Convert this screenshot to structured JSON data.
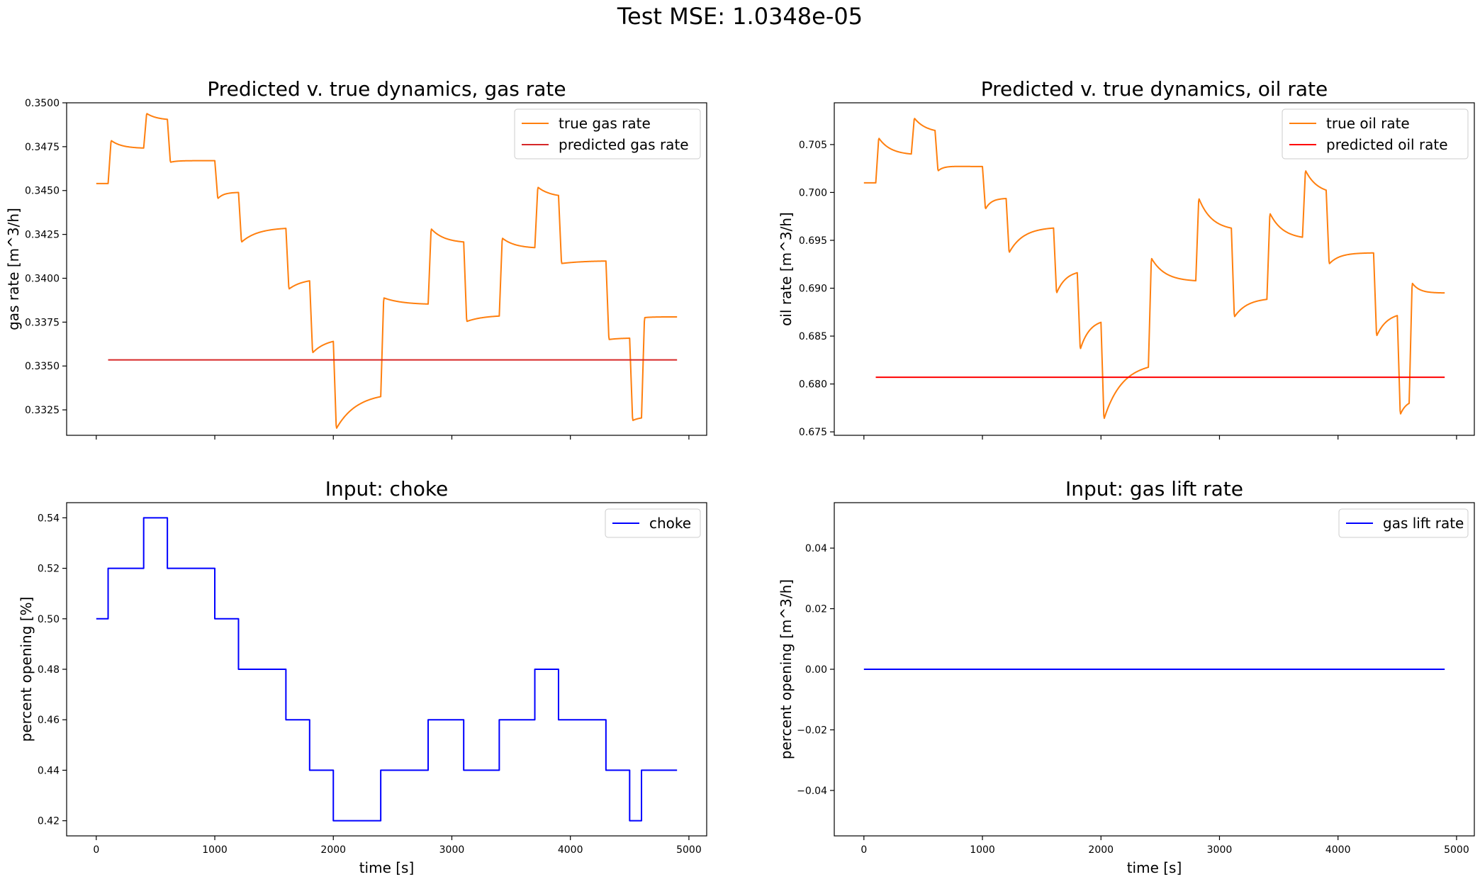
{
  "suptitle": "Test MSE: 1.0348e-05",
  "chart_data": [
    {
      "type": "line",
      "title": "Predicted v. true dynamics, gas rate",
      "xlabel": "",
      "ylabel": "gas rate [m^3/h]",
      "xlim": [
        -250,
        5150
      ],
      "ylim": [
        0.33105,
        0.35
      ],
      "x_ticks": [
        0,
        1000,
        2000,
        3000,
        4000,
        5000
      ],
      "x_tick_labels_visible": false,
      "y_ticks": [
        0.3325,
        0.335,
        0.3375,
        0.34,
        0.3425,
        0.345,
        0.3475,
        0.35
      ],
      "y_tick_labels": [
        "0.3325",
        "0.3350",
        "0.3375",
        "0.3400",
        "0.3425",
        "0.3450",
        "0.3475",
        "0.3500"
      ],
      "grid": false,
      "legend": "top-right",
      "series": [
        {
          "name": "true gas rate",
          "color": "#ff7f0e",
          "model": {
            "x_start": 0,
            "x_end": 4900,
            "initial": 0.3454,
            "events": [
              {
                "x": 100,
                "jump": 0.0026,
                "settle": -0.0006,
                "tau": 90
              },
              {
                "x": 400,
                "jump": 0.0021,
                "settle": -0.0005,
                "tau": 90
              },
              {
                "x": 600,
                "jump": -0.0025,
                "settle": 0.0002,
                "tau": 60
              },
              {
                "x": 1000,
                "jump": -0.0024,
                "settle": 0.0006,
                "tau": 50
              },
              {
                "x": 1200,
                "jump": -0.003,
                "settle": 0.001,
                "tau": 140
              },
              {
                "x": 1600,
                "jump": -0.0036,
                "settle": 0.0007,
                "tau": 120
              },
              {
                "x": 1800,
                "jump": -0.0043,
                "settle": 0.0009,
                "tau": 120
              },
              {
                "x": 2000,
                "jump": -0.0053,
                "settle": 0.0022,
                "tau": 180
              },
              {
                "x": 2400,
                "jump": 0.0057,
                "settle": -0.0007,
                "tau": 160
              },
              {
                "x": 2800,
                "jump": 0.0045,
                "settle": -0.001,
                "tau": 110
              },
              {
                "x": 3100,
                "jump": -0.0046,
                "settle": 0.0005,
                "tau": 140
              },
              {
                "x": 3400,
                "jump": 0.0046,
                "settle": -0.0008,
                "tau": 110
              },
              {
                "x": 3700,
                "jump": 0.0036,
                "settle": -0.0007,
                "tau": 110
              },
              {
                "x": 3900,
                "jump": -0.0039,
                "settle": 0.0003,
                "tau": 150
              },
              {
                "x": 4300,
                "jump": -0.0045,
                "settle": 0.0001,
                "tau": 90
              },
              {
                "x": 4500,
                "jump": -0.0048,
                "settle": 0.0003,
                "tau": 60
              },
              {
                "x": 4600,
                "jump": 0.0057,
                "settle": 0.0,
                "tau": 60
              }
            ]
          }
        },
        {
          "name": "predicted gas rate",
          "color": "#d62728",
          "x": [
            100,
            4900
          ],
          "y": [
            0.33535,
            0.33535
          ]
        }
      ]
    },
    {
      "type": "line",
      "title": "Predicted v. true dynamics, oil rate",
      "xlabel": "",
      "ylabel": "oil rate [m^3/h]",
      "xlim": [
        -250,
        5150
      ],
      "ylim": [
        0.67464,
        0.70936
      ],
      "x_ticks": [
        0,
        1000,
        2000,
        3000,
        4000,
        5000
      ],
      "x_tick_labels_visible": false,
      "y_ticks": [
        0.675,
        0.68,
        0.685,
        0.69,
        0.695,
        0.7,
        0.705
      ],
      "y_tick_labels": [
        "0.675",
        "0.680",
        "0.685",
        "0.690",
        "0.695",
        "0.700",
        "0.705"
      ],
      "grid": false,
      "legend": "top-right",
      "series": [
        {
          "name": "true oil rate",
          "color": "#ff7f0e",
          "model": {
            "x_start": 0,
            "x_end": 4900,
            "initial": 0.701,
            "events": [
              {
                "x": 100,
                "jump": 0.0052,
                "settle": -0.0023,
                "tau": 100
              },
              {
                "x": 400,
                "jump": 0.0042,
                "settle": -0.0019,
                "tau": 100
              },
              {
                "x": 600,
                "jump": -0.0046,
                "settle": 0.0011,
                "tau": 50
              },
              {
                "x": 1000,
                "jump": -0.0052,
                "settle": 0.0019,
                "tau": 50
              },
              {
                "x": 1200,
                "jump": -0.0063,
                "settle": 0.0033,
                "tau": 120
              },
              {
                "x": 1600,
                "jump": -0.0077,
                "settle": 0.0032,
                "tau": 80
              },
              {
                "x": 1800,
                "jump": -0.0092,
                "settle": 0.0041,
                "tau": 80
              },
              {
                "x": 2000,
                "jump": -0.0112,
                "settle": 0.0067,
                "tau": 160
              },
              {
                "x": 2400,
                "jump": 0.012,
                "settle": -0.0036,
                "tau": 120
              },
              {
                "x": 2800,
                "jump": 0.0095,
                "settle": -0.0042,
                "tau": 110
              },
              {
                "x": 3100,
                "jump": -0.0098,
                "settle": 0.0028,
                "tau": 110
              },
              {
                "x": 3400,
                "jump": 0.0097,
                "settle": -0.0036,
                "tau": 110
              },
              {
                "x": 3700,
                "jump": 0.0077,
                "settle": -0.003,
                "tau": 100
              },
              {
                "x": 3900,
                "jump": -0.0081,
                "settle": 0.002,
                "tau": 90
              },
              {
                "x": 4300,
                "jump": -0.0095,
                "settle": 0.0033,
                "tau": 90
              },
              {
                "x": 4500,
                "jump": -0.0113,
                "settle": 0.0022,
                "tau": 50
              },
              {
                "x": 4600,
                "jump": 0.0131,
                "settle": -0.002,
                "tau": 60
              }
            ]
          }
        },
        {
          "name": "predicted oil rate",
          "color": "#ff0000",
          "x": [
            100,
            4900
          ],
          "y": [
            0.6807,
            0.6807
          ]
        }
      ]
    },
    {
      "type": "line",
      "title": "Input: choke",
      "xlabel": "time [s]",
      "ylabel": "percent opening [%]",
      "xlim": [
        -250,
        5150
      ],
      "ylim": [
        0.414,
        0.546
      ],
      "x_ticks": [
        0,
        1000,
        2000,
        3000,
        4000,
        5000
      ],
      "x_tick_labels": [
        "0",
        "1000",
        "2000",
        "3000",
        "4000",
        "5000"
      ],
      "y_ticks": [
        0.42,
        0.44,
        0.46,
        0.48,
        0.5,
        0.52,
        0.54
      ],
      "y_tick_labels": [
        "0.42",
        "0.44",
        "0.46",
        "0.48",
        "0.50",
        "0.52",
        "0.54"
      ],
      "grid": false,
      "legend": "top-right",
      "series": [
        {
          "name": "choke",
          "color": "#0000ff",
          "step": true,
          "x": [
            0,
            100,
            400,
            600,
            1000,
            1200,
            1600,
            1800,
            2000,
            2400,
            2800,
            3100,
            3400,
            3700,
            3900,
            4300,
            4500,
            4600,
            4900
          ],
          "y": [
            0.5,
            0.52,
            0.54,
            0.52,
            0.5,
            0.48,
            0.46,
            0.44,
            0.42,
            0.44,
            0.46,
            0.44,
            0.46,
            0.48,
            0.46,
            0.44,
            0.42,
            0.44,
            0.44
          ]
        }
      ]
    },
    {
      "type": "line",
      "title": "Input: gas lift rate",
      "xlabel": "time [s]",
      "ylabel": "percent opening [m^3/h]",
      "xlim": [
        -250,
        5150
      ],
      "ylim": [
        -0.055,
        0.055
      ],
      "x_ticks": [
        0,
        1000,
        2000,
        3000,
        4000,
        5000
      ],
      "x_tick_labels": [
        "0",
        "1000",
        "2000",
        "3000",
        "4000",
        "5000"
      ],
      "y_ticks": [
        -0.04,
        -0.02,
        0.0,
        0.02,
        0.04
      ],
      "y_tick_labels": [
        "−0.04",
        "−0.02",
        "0.00",
        "0.02",
        "0.04"
      ],
      "grid": false,
      "legend": "top-right",
      "series": [
        {
          "name": "gas lift rate",
          "color": "#0000ff",
          "x": [
            0,
            4900
          ],
          "y": [
            0.0,
            0.0
          ]
        }
      ]
    }
  ]
}
